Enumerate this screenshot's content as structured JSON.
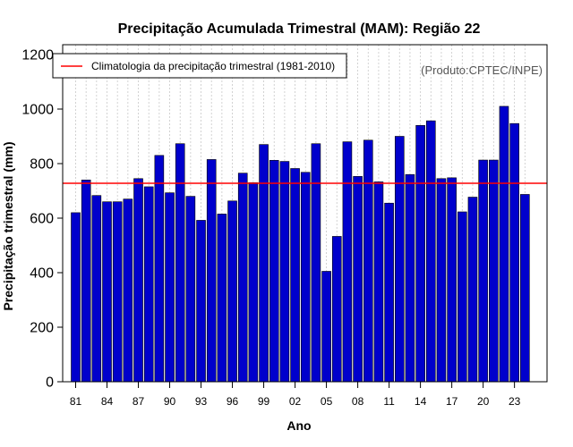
{
  "chart_data": {
    "type": "bar",
    "title": "Precipitação Acumulada Trimestral (MAM): Região 22",
    "xlabel": "Ano",
    "ylabel": "Precipitação trimestral (mm)",
    "ylim": [
      0,
      1200
    ],
    "yticks": [
      0,
      200,
      400,
      600,
      800,
      1000,
      1200
    ],
    "years": [
      1981,
      1982,
      1983,
      1984,
      1985,
      1986,
      1987,
      1988,
      1989,
      1990,
      1991,
      1992,
      1993,
      1994,
      1995,
      1996,
      1997,
      1998,
      1999,
      2000,
      2001,
      2002,
      2003,
      2004,
      2005,
      2006,
      2007,
      2008,
      2009,
      2010,
      2011,
      2012,
      2013,
      2014,
      2015,
      2016,
      2017,
      2018,
      2019,
      2020,
      2021,
      2022,
      2023,
      2024
    ],
    "values": [
      620,
      740,
      683,
      660,
      660,
      670,
      745,
      715,
      830,
      693,
      873,
      680,
      592,
      815,
      615,
      663,
      765,
      730,
      870,
      812,
      808,
      782,
      768,
      873,
      405,
      533,
      880,
      753,
      886,
      733,
      655,
      900,
      760,
      940,
      957,
      745,
      748,
      623,
      677,
      813,
      813,
      1010,
      947,
      687
    ],
    "xtick_labels": [
      "81",
      "84",
      "87",
      "90",
      "93",
      "96",
      "99",
      "02",
      "05",
      "08",
      "11",
      "14",
      "17",
      "20",
      "23"
    ],
    "xtick_years": [
      1981,
      1984,
      1987,
      1990,
      1993,
      1996,
      1999,
      2002,
      2005,
      2008,
      2011,
      2014,
      2017,
      2020,
      2023
    ],
    "reference_line": {
      "label": "Climatologia da precipitação trimestral (1981-2010)",
      "value": 728
    },
    "legend_position": "top-left",
    "grid": "vertical-dotted",
    "credit": "(Produto:CPTEC/INPE)",
    "colors": {
      "bar": "#0000cc",
      "bar_edge": "#000000",
      "line": "#ff0000",
      "grid": "#c8c8c8",
      "credit": "#555555"
    }
  }
}
